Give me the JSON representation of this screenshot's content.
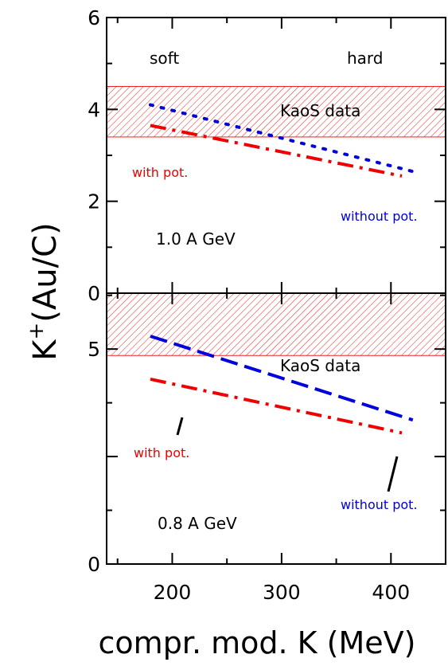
{
  "chart_data": {
    "type": "line",
    "xlabel": "compr. mod. K (MeV)",
    "ylabel_base": "K",
    "ylabel_sup": "+",
    "ylabel_rest": "(Au/C)",
    "xlim": [
      140,
      450
    ],
    "x_ticks": [
      200,
      300,
      400
    ],
    "x_tick_labels": [
      "200",
      "300",
      "400"
    ],
    "top_label_left": "soft",
    "top_label_right": "hard",
    "colors": {
      "with_pot": "#ee0000",
      "without_pot": "#0000dd",
      "band": "#ee2222",
      "arrow": "#000000"
    },
    "panels": [
      {
        "id": "top",
        "energy_label": "1.0 A GeV",
        "ylim": [
          0,
          6
        ],
        "y_ticks": [
          0,
          2,
          4,
          6
        ],
        "y_tick_labels": [
          "0",
          "2",
          "4",
          "6"
        ],
        "kaos_band": [
          3.4,
          4.5
        ],
        "kaos_label": "KaoS data",
        "with_pot_label": "with pot.",
        "without_pot_label": "without pot.",
        "series": [
          {
            "name": "without pot.",
            "style": "dotted",
            "color": "#0000dd",
            "x": [
              180,
              420
            ],
            "y": [
              4.1,
              2.65
            ]
          },
          {
            "name": "with pot.",
            "style": "dashdot",
            "color": "#ee0000",
            "x": [
              180,
              410
            ],
            "y": [
              3.65,
              2.55
            ]
          }
        ]
      },
      {
        "id": "bottom",
        "energy_label": "0.8 A GeV",
        "ylim": [
          0,
          6.3
        ],
        "y_ticks": [
          0,
          2.5,
          5
        ],
        "y_tick_labels": [
          "0",
          "",
          "5"
        ],
        "kaos_band": [
          4.85,
          7.2
        ],
        "kaos_label": "KaoS data",
        "with_pot_label": "with pot.",
        "without_pot_label": "without pot.",
        "series": [
          {
            "name": "without pot.",
            "style": "dashed",
            "color": "#0000dd",
            "x": [
              180,
              420
            ],
            "y": [
              5.3,
              3.35
            ]
          },
          {
            "name": "with pot.",
            "style": "dashdot",
            "color": "#ee0000",
            "x": [
              180,
              410
            ],
            "y": [
              4.3,
              3.05
            ]
          }
        ]
      }
    ]
  }
}
